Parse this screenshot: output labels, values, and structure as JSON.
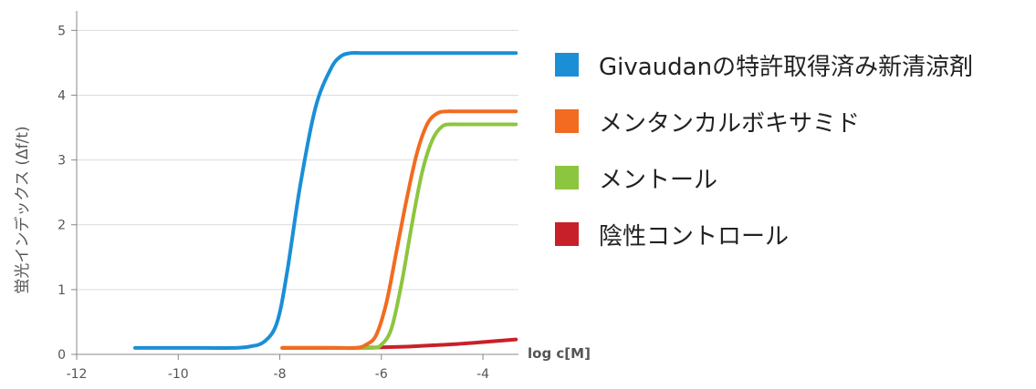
{
  "chart_data": {
    "type": "line",
    "title": "",
    "xlabel": "log c[M]",
    "ylabel": "蛍光インデックス (Δf/t)",
    "xlim": [
      -12,
      -3.3
    ],
    "ylim": [
      0,
      5.3
    ],
    "xticks": [
      -12,
      -10,
      -8,
      -6,
      -4
    ],
    "yticks": [
      0,
      1,
      2,
      3,
      4,
      5
    ],
    "grid": "horizontal",
    "legend_position": "right",
    "series": [
      {
        "name": "Givaudanの特許取得済み新清涼剤",
        "color": "#1a8fd6",
        "x": [
          -10.85,
          -9.5,
          -8.9,
          -8.6,
          -8.3,
          -8.05,
          -7.85,
          -7.6,
          -7.3,
          -7.0,
          -6.8,
          -6.6,
          -6.4,
          -6.0,
          -5.0,
          -4.0,
          -3.35
        ],
        "y": [
          0.1,
          0.1,
          0.1,
          0.12,
          0.2,
          0.5,
          1.3,
          2.6,
          3.8,
          4.4,
          4.6,
          4.65,
          4.65,
          4.65,
          4.65,
          4.65,
          4.65
        ]
      },
      {
        "name": "メンタンカルボキサミド",
        "color": "#f26b21",
        "x": [
          -7.95,
          -7.0,
          -6.5,
          -6.3,
          -6.1,
          -5.9,
          -5.7,
          -5.5,
          -5.3,
          -5.1,
          -4.9,
          -4.7,
          -4.5,
          -3.35
        ],
        "y": [
          0.1,
          0.1,
          0.1,
          0.15,
          0.3,
          0.8,
          1.6,
          2.4,
          3.1,
          3.55,
          3.72,
          3.75,
          3.75,
          3.75
        ]
      },
      {
        "name": "メントール",
        "color": "#8cc63e",
        "x": [
          -7.95,
          -7.0,
          -6.2,
          -6.0,
          -5.8,
          -5.6,
          -5.4,
          -5.2,
          -5.0,
          -4.8,
          -4.6,
          -4.4,
          -3.35
        ],
        "y": [
          0.1,
          0.1,
          0.1,
          0.15,
          0.4,
          1.1,
          2.0,
          2.8,
          3.3,
          3.52,
          3.55,
          3.55,
          3.55
        ]
      },
      {
        "name": "陰性コントロール",
        "color": "#c8202a",
        "x": [
          -7.95,
          -7.0,
          -6.5,
          -6.0,
          -5.5,
          -5.0,
          -4.5,
          -4.0,
          -3.35
        ],
        "y": [
          0.1,
          0.1,
          0.1,
          0.11,
          0.12,
          0.14,
          0.16,
          0.19,
          0.23
        ]
      }
    ]
  }
}
